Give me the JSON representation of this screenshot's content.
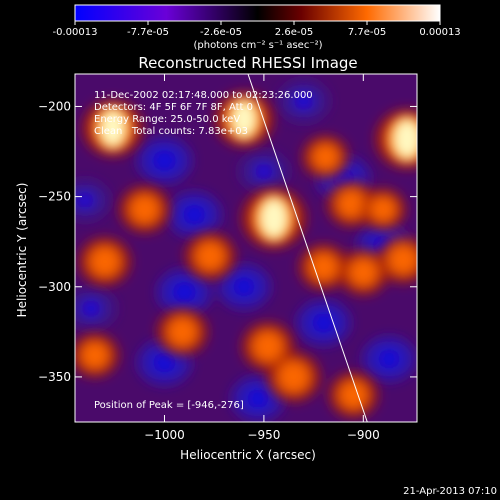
{
  "colorbar": {
    "tick_labels": [
      "-0.00013",
      "-7.7e-05",
      "-2.6e-05",
      "2.6e-05",
      "7.7e-05",
      "0.00013"
    ],
    "units": "(photons cm⁻² s⁻¹ asec⁻²)"
  },
  "chart_data": {
    "type": "heatmap",
    "title": "Reconstructed RHESSI Image",
    "xlabel": "Heliocentric X (arcsec)",
    "ylabel": "Heliocentric Y (arcsec)",
    "xlim": [
      -1045,
      -873
    ],
    "ylim": [
      -375,
      -182
    ],
    "xticks": [
      -1000,
      -950,
      -900
    ],
    "yticks": [
      -350,
      -300,
      -250,
      -200
    ],
    "xtick_labels": [
      "−1000",
      "−950",
      "−900"
    ],
    "ytick_labels": [
      "−350",
      "−300",
      "−250",
      "−200"
    ],
    "colormap": [
      "#0000ff",
      "#6a00d8",
      "#000000",
      "#6a0000",
      "#ff6a00",
      "#ffffff"
    ],
    "value_range": [
      -0.00013,
      0.00013
    ],
    "annotations": [
      "11-Dec-2002 02:17:48.000 to 02:23:26.000",
      "Detectors: 4F 5F 6F 7F 8F, Att 0",
      "Energy Range: 25.0-50.0 keV",
      "Clean   Total counts: 7.83e+03"
    ],
    "peak_label": "Position of Peak = [-946,-276]",
    "limb_line": [
      [
        -958,
        -182
      ],
      [
        -898,
        -375
      ]
    ],
    "hot_spots": [
      {
        "x": -1026,
        "y": -212,
        "level": 0.85
      },
      {
        "x": -945,
        "y": -262,
        "level": 1.0
      },
      {
        "x": -878,
        "y": -218,
        "level": 0.95
      },
      {
        "x": -960,
        "y": -207,
        "level": 0.8
      },
      {
        "x": -1030,
        "y": -286,
        "level": 0.55
      },
      {
        "x": -1010,
        "y": -257,
        "level": 0.5
      },
      {
        "x": -977,
        "y": -283,
        "level": 0.5
      },
      {
        "x": -948,
        "y": -333,
        "level": 0.55
      },
      {
        "x": -991,
        "y": -325,
        "level": 0.5
      },
      {
        "x": -906,
        "y": -254,
        "level": 0.45
      },
      {
        "x": -920,
        "y": -289,
        "level": 0.45
      },
      {
        "x": -900,
        "y": -292,
        "level": 0.45
      },
      {
        "x": -935,
        "y": -350,
        "level": 0.6
      },
      {
        "x": -905,
        "y": -360,
        "level": 0.45
      },
      {
        "x": -880,
        "y": -285,
        "level": 0.5
      },
      {
        "x": -1035,
        "y": -338,
        "level": 0.4
      },
      {
        "x": -919,
        "y": -228,
        "level": 0.35
      },
      {
        "x": -890,
        "y": -257,
        "level": 0.3
      }
    ],
    "cold_spots": [
      {
        "x": -1000,
        "y": -230,
        "level": 0.9
      },
      {
        "x": -985,
        "y": -260,
        "level": 0.85
      },
      {
        "x": -990,
        "y": -303,
        "level": 0.9
      },
      {
        "x": -960,
        "y": -300,
        "level": 0.8
      },
      {
        "x": -1000,
        "y": -342,
        "level": 0.85
      },
      {
        "x": -953,
        "y": -362,
        "level": 0.8
      },
      {
        "x": -910,
        "y": -240,
        "level": 0.85
      },
      {
        "x": -890,
        "y": -277,
        "level": 0.8
      },
      {
        "x": -920,
        "y": -320,
        "level": 0.85
      },
      {
        "x": -887,
        "y": -340,
        "level": 0.8
      },
      {
        "x": -930,
        "y": -197,
        "level": 0.7
      },
      {
        "x": -1040,
        "y": -252,
        "level": 0.6
      },
      {
        "x": -1037,
        "y": -312,
        "level": 0.65
      },
      {
        "x": -950,
        "y": -236,
        "level": 0.6
      }
    ]
  },
  "timestamp": "21-Apr-2013 07:10"
}
